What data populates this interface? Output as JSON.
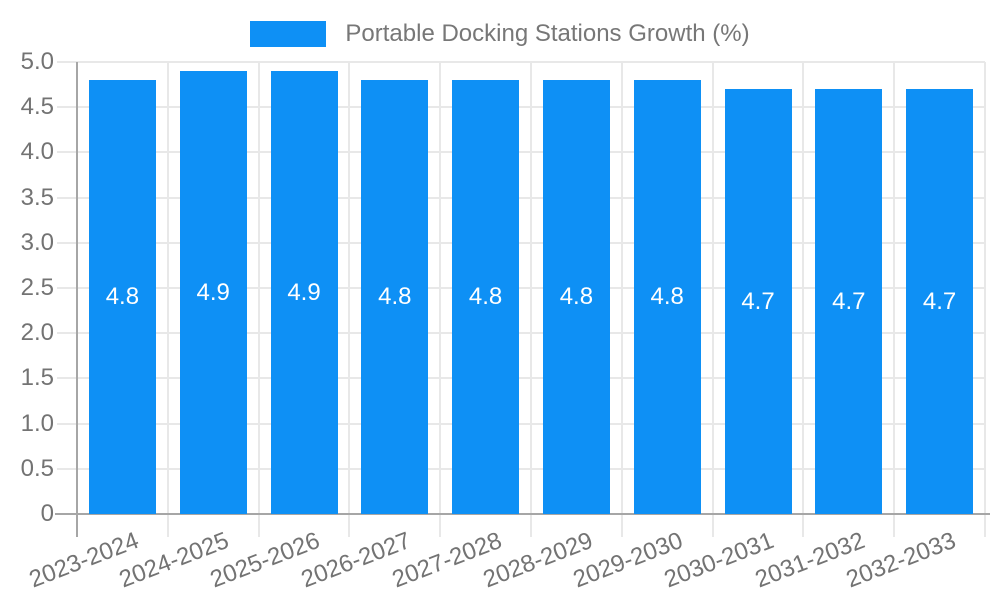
{
  "chart_data": {
    "type": "bar",
    "legend": "Portable Docking Stations Growth (%)",
    "legend_position": "top",
    "categories": [
      "2023-2024",
      "2024-2025",
      "2025-2026",
      "2026-2027",
      "2027-2028",
      "2028-2029",
      "2029-2030",
      "2030-2031",
      "2031-2032",
      "2032-2033"
    ],
    "values": [
      4.8,
      4.9,
      4.9,
      4.8,
      4.8,
      4.8,
      4.8,
      4.7,
      4.7,
      4.7
    ],
    "value_labels": [
      "4.8",
      "4.9",
      "4.9",
      "4.8",
      "4.8",
      "4.8",
      "4.8",
      "4.7",
      "4.7",
      "4.7"
    ],
    "xlabel": "",
    "ylabel": "",
    "ylim": [
      0,
      5
    ],
    "yticks": [
      0,
      0.5,
      1.0,
      1.5,
      2.0,
      2.5,
      3.0,
      3.5,
      4.0,
      4.5,
      5.0
    ],
    "ytick_labels": [
      "0",
      "0.5",
      "1.0",
      "1.5",
      "2.0",
      "2.5",
      "3.0",
      "3.5",
      "4.0",
      "4.5",
      "5.0"
    ],
    "grid": true,
    "colors": {
      "bar": "#0e90f5",
      "grid": "#e8e8e8",
      "axis": "#a6a6a6",
      "tick_text": "#737373",
      "legend_text": "#777777",
      "value_text": "#ffffff",
      "background": "#ffffff"
    }
  }
}
